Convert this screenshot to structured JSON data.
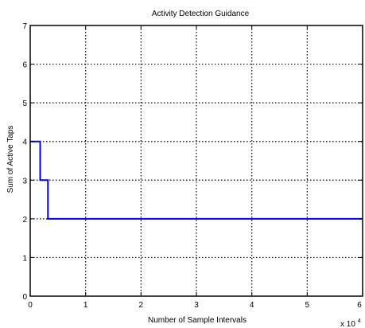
{
  "chart_data": {
    "type": "line",
    "title": "Activity Detection Guidance",
    "xlabel": "Number of Sample Intervals",
    "ylabel": "Sum of Active Taps",
    "x_multiplier_label": "x 10",
    "x_multiplier_exponent": "4",
    "xlim": [
      0,
      6
    ],
    "ylim": [
      0,
      7
    ],
    "x_ticks": [
      "0",
      "1",
      "2",
      "3",
      "4",
      "5",
      "6"
    ],
    "y_ticks": [
      "0",
      "1",
      "2",
      "3",
      "4",
      "5",
      "6",
      "7"
    ],
    "grid": true,
    "grid_style": "dotted",
    "series": [
      {
        "color": "#0000ff",
        "step": "post",
        "x": [
          0,
          0.18,
          0.32,
          6
        ],
        "y": [
          4,
          3,
          2,
          2
        ]
      }
    ]
  }
}
